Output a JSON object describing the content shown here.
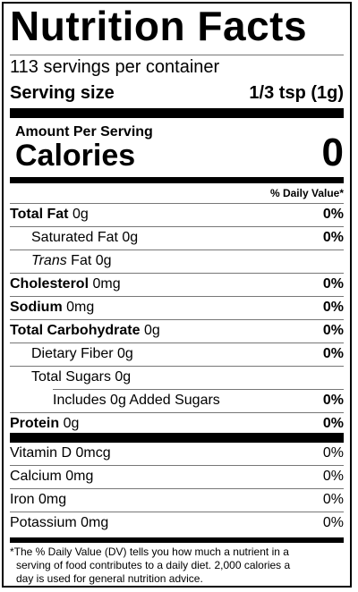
{
  "title": "Nutrition Facts",
  "servings_per_container": "113 servings per container",
  "serving_size": {
    "label": "Serving size",
    "value": "1/3 tsp (1g)"
  },
  "amount_per_serving": "Amount Per Serving",
  "calories": {
    "label": "Calories",
    "value": "0"
  },
  "daily_value_header": "% Daily Value*",
  "nutrients": [
    {
      "bold_name": "Total Fat",
      "name": "",
      "amount": "0g",
      "dv": "0%"
    },
    {
      "bold_name": "",
      "name": "Saturated Fat",
      "amount": "0g",
      "dv": "0%"
    },
    {
      "bold_name": "",
      "italic_name": "Trans",
      "name": "Fat",
      "amount": "0g",
      "dv": ""
    },
    {
      "bold_name": "Cholesterol",
      "name": "",
      "amount": "0mg",
      "dv": "0%"
    },
    {
      "bold_name": "Sodium",
      "name": "",
      "amount": "0mg",
      "dv": "0%"
    },
    {
      "bold_name": "Total Carbohydrate",
      "name": "",
      "amount": "0g",
      "dv": "0%"
    },
    {
      "bold_name": "",
      "name": "Dietary Fiber",
      "amount": "0g",
      "dv": "0%"
    },
    {
      "bold_name": "",
      "name": "Total Sugars",
      "amount": "0g",
      "dv": ""
    },
    {
      "bold_name": "",
      "name": "Includes 0g Added Sugars",
      "amount": "",
      "dv": "0%"
    },
    {
      "bold_name": "Protein",
      "name": "",
      "amount": "0g",
      "dv": "0%"
    }
  ],
  "vitamins": [
    {
      "name": "Vitamin D",
      "amount": "0mcg",
      "dv": "0%"
    },
    {
      "name": "Calcium",
      "amount": "0mg",
      "dv": "0%"
    },
    {
      "name": "Iron",
      "amount": "0mg",
      "dv": "0%"
    },
    {
      "name": "Potassium",
      "amount": "0mg",
      "dv": "0%"
    }
  ],
  "footnote": {
    "line1": "*The % Daily Value (DV) tells you how much a nutrient in a",
    "line2": "serving of food contributes to a daily diet. 2,000 calories a",
    "line3": "day is used for general nutrition advice."
  }
}
